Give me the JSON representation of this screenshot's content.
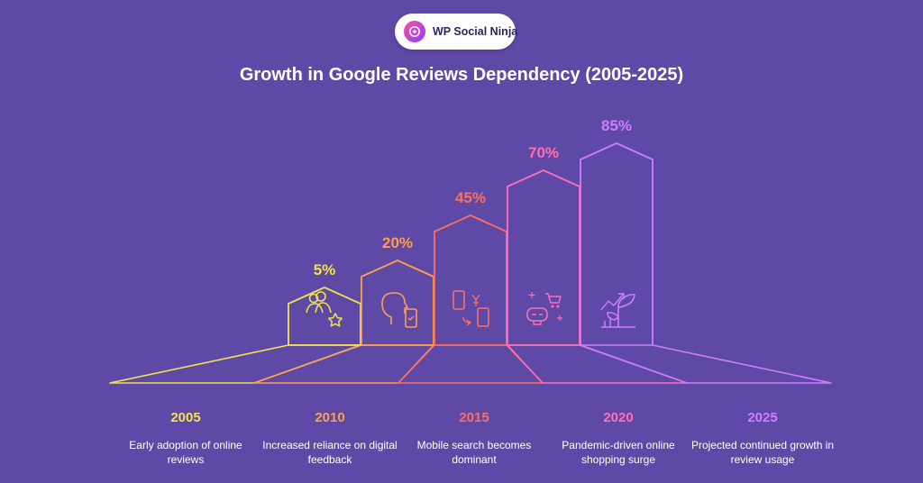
{
  "brand": {
    "name": "WP Social Ninja"
  },
  "chart_data": {
    "type": "bar",
    "title": "Growth in Google Reviews Dependency (2005-2025)",
    "categories": [
      "2005",
      "2010",
      "2015",
      "2020",
      "2025"
    ],
    "values": [
      5,
      20,
      45,
      70,
      85
    ],
    "value_labels": [
      "5%",
      "20%",
      "45%",
      "70%",
      "85%"
    ],
    "descriptions": [
      "Early adoption of online reviews",
      "Increased reliance on digital feedback",
      "Mobile search becomes dominant",
      "Pandemic-driven online shopping surge",
      "Projected continued growth in review usage"
    ],
    "icons": [
      "users-star-icon",
      "head-phone-icon",
      "mobile-payment-icon",
      "vr-shopping-icon",
      "growth-plant-icon"
    ],
    "colors": [
      "#f2e24b",
      "#ff9e4f",
      "#ff6f61",
      "#ff6fb5",
      "#cf7dff"
    ],
    "ylim": [
      0,
      100
    ]
  }
}
